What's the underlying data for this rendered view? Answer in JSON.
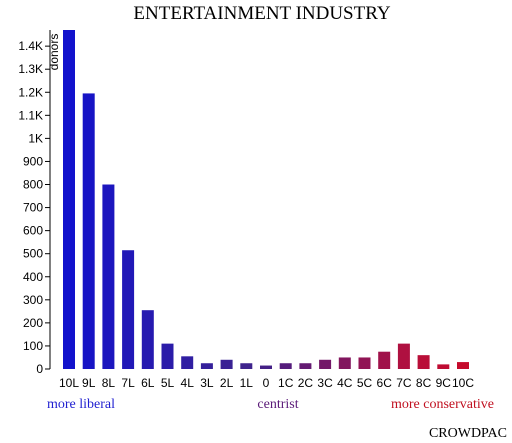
{
  "chart_data": {
    "type": "bar",
    "title": "ENTERTAINMENT INDUSTRY",
    "ylabel": "donors",
    "xlabel": "",
    "ylim": [
      0,
      1470
    ],
    "yticks": [
      0,
      100,
      200,
      300,
      400,
      500,
      600,
      700,
      800,
      900,
      "1K",
      "1.1K",
      "1.2K",
      "1.3K",
      "1.4K"
    ],
    "ytick_values": [
      0,
      100,
      200,
      300,
      400,
      500,
      600,
      700,
      800,
      900,
      1000,
      1100,
      1200,
      1300,
      1400
    ],
    "categories": [
      "10L",
      "9L",
      "8L",
      "7L",
      "6L",
      "5L",
      "4L",
      "3L",
      "2L",
      "1L",
      "0",
      "1C",
      "2C",
      "3C",
      "4C",
      "5C",
      "6C",
      "7C",
      "8C",
      "9C",
      "10C"
    ],
    "values": [
      1470,
      1195,
      800,
      515,
      255,
      110,
      55,
      25,
      40,
      25,
      15,
      25,
      25,
      40,
      50,
      50,
      75,
      110,
      60,
      20,
      30
    ],
    "colors": [
      "#1212cc",
      "#1714c5",
      "#1c16be",
      "#2118b7",
      "#261ab0",
      "#2b1ca9",
      "#301ea2",
      "#35209b",
      "#3a2294",
      "#3f248d",
      "#442086",
      "#551c7c",
      "#641a72",
      "#731868",
      "#82165e",
      "#911454",
      "#a0124a",
      "#af1040",
      "#b90e38",
      "#bf0c32",
      "#c50a2c"
    ],
    "grid": false,
    "legend": "none"
  },
  "footer": {
    "left_label": "more liberal",
    "center_label": "centrist",
    "right_label": "more conservative",
    "left_color": "#1f1fd0",
    "center_color": "#5a1a78",
    "right_color": "#c01020",
    "brand": "CROWDPAC"
  }
}
